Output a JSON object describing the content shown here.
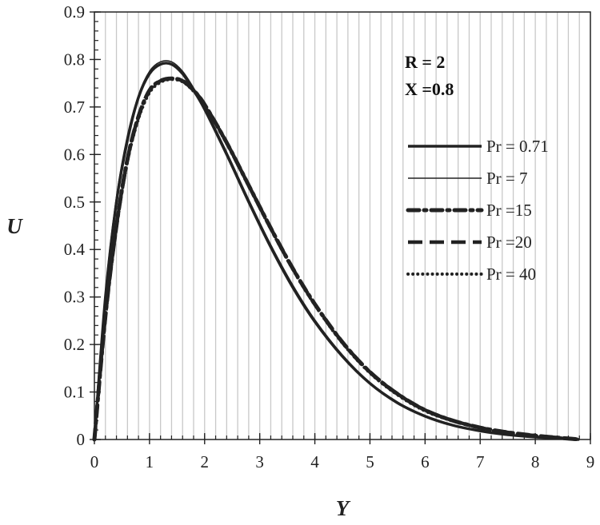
{
  "chart_data": {
    "type": "line",
    "xlabel": "Y",
    "ylabel": "U",
    "xlim": [
      0,
      9
    ],
    "ylim": [
      0,
      0.9
    ],
    "x_ticks": [
      "0",
      "1",
      "2",
      "3",
      "4",
      "5",
      "6",
      "7",
      "8",
      "9"
    ],
    "y_ticks": [
      "0",
      "0.1",
      "0.2",
      "0.3",
      "0.4",
      "0.5",
      "0.6",
      "0.7",
      "0.8",
      "0.9"
    ],
    "grid": "vertical",
    "legend_position": "right",
    "annotations": [
      "R = 2",
      "X =0.8"
    ],
    "colors": {
      "line": "#222222",
      "grid": "#c8c8c8",
      "axis": "#222222"
    },
    "series": [
      {
        "name": "Pr = 0.71",
        "style": "solid-thick",
        "x": [
          0,
          0.2,
          0.4,
          0.6,
          0.8,
          1.0,
          1.2,
          1.4,
          1.6,
          1.8,
          2.0,
          2.4,
          2.8,
          3.2,
          3.6,
          4.0,
          4.5,
          5.0,
          5.5,
          6.0,
          6.5,
          7.0,
          7.5,
          8.0,
          8.5,
          8.8
        ],
        "y": [
          0,
          0.3,
          0.5,
          0.63,
          0.72,
          0.77,
          0.79,
          0.79,
          0.77,
          0.735,
          0.695,
          0.6,
          0.5,
          0.405,
          0.32,
          0.248,
          0.175,
          0.118,
          0.077,
          0.049,
          0.03,
          0.018,
          0.01,
          0.005,
          0.002,
          0
        ]
      },
      {
        "name": "Pr = 7",
        "style": "solid-thin",
        "x": [
          0,
          0.2,
          0.4,
          0.6,
          0.8,
          1.0,
          1.2,
          1.4,
          1.6,
          1.8,
          2.0,
          2.4,
          2.8,
          3.2,
          3.6,
          4.0,
          4.5,
          5.0,
          5.5,
          6.0,
          6.5,
          7.0,
          7.5,
          8.0,
          8.5,
          8.8
        ],
        "y": [
          0,
          0.31,
          0.51,
          0.64,
          0.725,
          0.775,
          0.795,
          0.795,
          0.775,
          0.74,
          0.7,
          0.605,
          0.505,
          0.41,
          0.325,
          0.252,
          0.178,
          0.12,
          0.079,
          0.05,
          0.031,
          0.019,
          0.011,
          0.006,
          0.002,
          0
        ]
      },
      {
        "name": "Pr =15",
        "style": "dash-dot",
        "x": [
          0,
          0.2,
          0.4,
          0.6,
          0.8,
          1.0,
          1.2,
          1.4,
          1.6,
          1.8,
          2.0,
          2.4,
          2.8,
          3.2,
          3.6,
          4.0,
          4.5,
          5.0,
          5.5,
          6.0,
          6.5,
          7.0,
          7.5,
          8.0,
          8.5,
          8.8
        ],
        "y": [
          0,
          0.26,
          0.45,
          0.59,
          0.68,
          0.735,
          0.755,
          0.76,
          0.755,
          0.735,
          0.705,
          0.625,
          0.535,
          0.445,
          0.36,
          0.285,
          0.205,
          0.142,
          0.096,
          0.062,
          0.04,
          0.025,
          0.015,
          0.008,
          0.003,
          0
        ]
      },
      {
        "name": "Pr =20",
        "style": "long-dash",
        "x": [
          0,
          0.2,
          0.4,
          0.6,
          0.8,
          1.0,
          1.2,
          1.4,
          1.6,
          1.8,
          2.0,
          2.4,
          2.8,
          3.2,
          3.6,
          4.0,
          4.5,
          5.0,
          5.5,
          6.0,
          6.5,
          7.0,
          7.5,
          8.0,
          8.5,
          8.8
        ],
        "y": [
          0,
          0.26,
          0.45,
          0.59,
          0.68,
          0.735,
          0.755,
          0.76,
          0.755,
          0.735,
          0.705,
          0.625,
          0.535,
          0.445,
          0.36,
          0.285,
          0.205,
          0.142,
          0.096,
          0.062,
          0.04,
          0.025,
          0.015,
          0.008,
          0.003,
          0
        ]
      },
      {
        "name": "Pr = 40",
        "style": "dotted",
        "x": [
          0,
          0.2,
          0.4,
          0.6,
          0.8,
          1.0,
          1.2,
          1.4,
          1.6,
          1.8,
          2.0,
          2.4,
          2.8,
          3.2,
          3.6,
          4.0,
          4.5,
          5.0,
          5.5,
          6.0,
          6.5,
          7.0,
          7.5,
          8.0,
          8.5,
          8.8
        ],
        "y": [
          0,
          0.255,
          0.445,
          0.585,
          0.675,
          0.73,
          0.752,
          0.758,
          0.753,
          0.733,
          0.703,
          0.623,
          0.533,
          0.443,
          0.358,
          0.283,
          0.203,
          0.14,
          0.094,
          0.06,
          0.039,
          0.024,
          0.014,
          0.007,
          0.003,
          0
        ]
      }
    ]
  }
}
